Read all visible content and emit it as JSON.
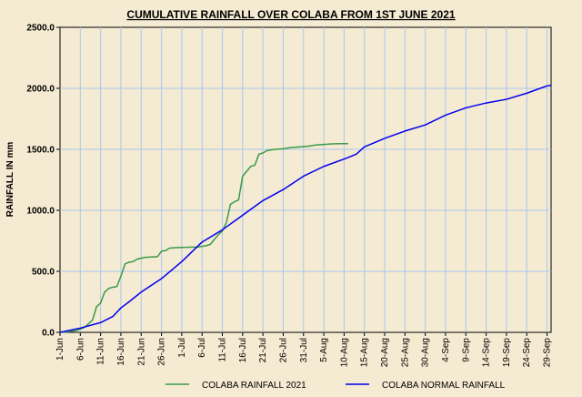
{
  "chart_data": {
    "type": "line",
    "title": "CUMULATIVE RAINFALL OVER COLABA FROM 1ST JUNE 2021",
    "xlabel": "",
    "ylabel": "RAINFALL IN mm",
    "ylim": [
      0,
      2500
    ],
    "yticks": [
      "0.0",
      "500.0",
      "1000.0",
      "1500.0",
      "2000.0",
      "2500.0"
    ],
    "ytick_values": [
      0,
      500,
      1000,
      1500,
      2000,
      2500
    ],
    "xticks": [
      "1-Jun",
      "6-Jun",
      "11-Jun",
      "16-Jun",
      "21-Jun",
      "26-Jun",
      "1-Jul",
      "6-Jul",
      "11-Jul",
      "16-Jul",
      "21-Jul",
      "26-Jul",
      "31-Jul",
      "5-Aug",
      "10-Aug",
      "15-Aug",
      "20-Aug",
      "25-Aug",
      "30-Aug",
      "4-Sep",
      "9-Sep",
      "14-Sep",
      "19-Sep",
      "24-Sep",
      "29-Sep"
    ],
    "xlim": [
      "1-Jun",
      "30-Sep"
    ],
    "grid": true,
    "legend_position": "bottom",
    "series": [
      {
        "name": "COLABA RAINFALL  2021",
        "color": "#3a9a4a",
        "x": [
          "1-Jun",
          "3-Jun",
          "5-Jun",
          "7-Jun",
          "9-Jun",
          "10-Jun",
          "11-Jun",
          "12-Jun",
          "13-Jun",
          "14-Jun",
          "15-Jun",
          "16-Jun",
          "17-Jun",
          "18-Jun",
          "19-Jun",
          "20-Jun",
          "22-Jun",
          "25-Jun",
          "26-Jun",
          "27-Jun",
          "28-Jun",
          "30-Jun",
          "2-Jul",
          "5-Jul",
          "7-Jul",
          "8-Jul",
          "10-Jul",
          "11-Jul",
          "12-Jul",
          "13-Jul",
          "14-Jul",
          "15-Jul",
          "16-Jul",
          "17-Jul",
          "18-Jul",
          "19-Jul",
          "20-Jul",
          "21-Jul",
          "22-Jul",
          "23-Jul",
          "24-Jul",
          "26-Jul",
          "28-Jul",
          "30-Jul",
          "1-Aug",
          "3-Aug",
          "5-Aug",
          "7-Aug",
          "9-Aug",
          "11-Aug"
        ],
        "values": [
          0,
          5,
          15,
          40,
          100,
          210,
          240,
          330,
          360,
          370,
          375,
          460,
          560,
          575,
          580,
          600,
          615,
          620,
          665,
          670,
          690,
          695,
          697,
          700,
          710,
          720,
          800,
          830,
          900,
          1050,
          1070,
          1085,
          1280,
          1320,
          1360,
          1370,
          1460,
          1470,
          1490,
          1495,
          1500,
          1505,
          1515,
          1520,
          1525,
          1535,
          1540,
          1545,
          1547,
          1547
        ]
      },
      {
        "name": "COLABA NORMAL  RAINFALL",
        "color": "#0000ee",
        "x": [
          "1-Jun",
          "6-Jun",
          "11-Jun",
          "14-Jun",
          "16-Jun",
          "18-Jun",
          "21-Jun",
          "26-Jun",
          "1-Jul",
          "6-Jul",
          "11-Jul",
          "16-Jul",
          "21-Jul",
          "26-Jul",
          "31-Jul",
          "5-Aug",
          "10-Aug",
          "13-Aug",
          "15-Aug",
          "20-Aug",
          "25-Aug",
          "30-Aug",
          "4-Sep",
          "9-Sep",
          "14-Sep",
          "19-Sep",
          "24-Sep",
          "29-Sep",
          "30-Sep"
        ],
        "values": [
          0,
          35,
          80,
          130,
          200,
          250,
          330,
          440,
          580,
          740,
          840,
          960,
          1080,
          1170,
          1280,
          1360,
          1420,
          1460,
          1520,
          1590,
          1650,
          1700,
          1780,
          1840,
          1880,
          1910,
          1960,
          2020,
          2025
        ]
      }
    ]
  }
}
